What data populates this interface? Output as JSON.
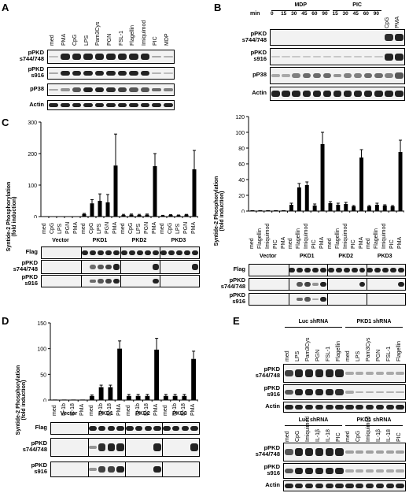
{
  "panels": {
    "A": {
      "letter": "A",
      "lanes": [
        "med",
        "PMA",
        "CpG",
        "LPS",
        "Pam3Cys",
        "PGN",
        "FSL-1",
        "Flagellin",
        "Imiquimod",
        "PIC",
        "MDP"
      ],
      "rows": [
        "pPKD s744/748",
        "pPKD s916",
        "pP38",
        "Actin"
      ]
    },
    "B": {
      "letter": "B",
      "min_label": "min",
      "groups": [
        "MDP",
        "PIC"
      ],
      "times": [
        "0",
        "15",
        "30",
        "45",
        "60",
        "90",
        "15",
        "30",
        "45",
        "60",
        "90"
      ],
      "extra_lanes": [
        "CpG",
        "PMA"
      ],
      "rows": [
        "pPKD s744/748",
        "pPKD s916",
        "pP38",
        "Actin"
      ]
    },
    "C": {
      "letter": "C",
      "left": {
        "ylabel": "Syntide-2 Phosphorylation (fold induction)",
        "lanes": [
          "med",
          "CpG",
          "LPS",
          "PGN",
          "PMA",
          "med",
          "CpG",
          "LPS",
          "PGN",
          "PMA",
          "med",
          "CpG",
          "LPS",
          "PGN",
          "PMA",
          "med",
          "CpG",
          "LPS",
          "PGN",
          "PMA"
        ],
        "groups": [
          "Vector",
          "PKD1",
          "PKD2",
          "PKD3"
        ],
        "rows": [
          "Flag",
          "pPKD s744/748",
          "pPKD s916"
        ]
      },
      "right": {
        "ylabel": "Syntide-2 Phosphorylation (fold induction)",
        "lanes": [
          "med",
          "Flagellin",
          "Imiquimod",
          "PIC",
          "PMA",
          "med",
          "Flagellin",
          "Imiquimod",
          "PIC",
          "PMA",
          "med",
          "Flagellin",
          "Imiquimod",
          "PIC",
          "PMA",
          "med",
          "Flagellin",
          "Imiquimod",
          "PIC",
          "PMA"
        ],
        "groups": [
          "Vector",
          "PKD1",
          "PKD2",
          "PKD3"
        ],
        "rows": [
          "Flag",
          "pPKD s744/748",
          "pPKD s916"
        ]
      }
    },
    "D": {
      "letter": "D",
      "ylabel": "Syntide-2 Phosphorylation (fold induction)",
      "lanes": [
        "med",
        "IL-1b",
        "IL-18",
        "PMA",
        "med",
        "IL-1b",
        "IL-18",
        "PMA",
        "med",
        "IL-1b",
        "IL-18",
        "PMA",
        "med",
        "IL-1b",
        "IL-18",
        "PMA"
      ],
      "groups": [
        "Vector",
        "PKD1",
        "PKD2",
        "PKD3"
      ],
      "rows": [
        "Flag",
        "pPKD s744/748",
        "pPKD s916"
      ]
    },
    "E": {
      "letter": "E",
      "top": {
        "groups": [
          "Luc shRNA",
          "PKD1 shRNA"
        ],
        "lanes": [
          "med",
          "LPS",
          "Pam3Cys",
          "PGN",
          "FSL-1",
          "Flagellin",
          "med",
          "LPS",
          "Pam3Cys",
          "PGN",
          "FSL-1",
          "Flagellin"
        ],
        "rows": [
          "pPKD s744/748",
          "pPKD s916",
          "Actin"
        ]
      },
      "bottom": {
        "groups": [
          "Luc shRNA",
          "PKD1 shRNA"
        ],
        "lanes": [
          "med",
          "CpG",
          "Imiquimod",
          "IL-1β",
          "IL-18",
          "PIC",
          "med",
          "CpG",
          "Imiquimod",
          "IL-1β",
          "IL-18",
          "PIC"
        ],
        "rows": [
          "pPKD s744/748",
          "pPKD s916",
          "Actin"
        ]
      }
    }
  },
  "chart_data": [
    {
      "type": "bar",
      "panel": "C-left",
      "ylabel": "Syntide-2 Phosphorylation (fold induction)",
      "yticks": [
        0,
        100,
        200,
        300
      ],
      "ylim": [
        0,
        300
      ],
      "categories": [
        "med",
        "CpG",
        "LPS",
        "PGN",
        "PMA",
        "med",
        "CpG",
        "LPS",
        "PGN",
        "PMA",
        "med",
        "CpG",
        "LPS",
        "PGN",
        "PMA",
        "med",
        "CpG",
        "LPS",
        "PGN",
        "PMA"
      ],
      "values": [
        1,
        1,
        1,
        1,
        1,
        8,
        42,
        50,
        45,
        162,
        5,
        6,
        5,
        6,
        160,
        3,
        5,
        4,
        6,
        150
      ],
      "errors": [
        0,
        0,
        0,
        0,
        0,
        2,
        12,
        22,
        25,
        100,
        2,
        2,
        2,
        2,
        40,
        1,
        1,
        1,
        1,
        60
      ]
    },
    {
      "type": "bar",
      "panel": "C-right",
      "ylabel": "Syntide-2 Phosphorylation (fold induction)",
      "yticks": [
        0,
        20,
        40,
        60,
        80,
        100,
        120
      ],
      "ylim": [
        0,
        120
      ],
      "categories": [
        "med",
        "Flagellin",
        "Imiquimod",
        "PIC",
        "PMA",
        "med",
        "Flagellin",
        "Imiquimod",
        "PIC",
        "PMA",
        "med",
        "Flagellin",
        "Imiquimod",
        "PIC",
        "PMA",
        "med",
        "Flagellin",
        "Imiquimod",
        "PIC",
        "PMA"
      ],
      "values": [
        1,
        1,
        1,
        1,
        1,
        8,
        30,
        33,
        7,
        85,
        10,
        8,
        9,
        6,
        68,
        6,
        8,
        7,
        6,
        75
      ],
      "errors": [
        0,
        0,
        0,
        0,
        0,
        2,
        5,
        4,
        2,
        15,
        2,
        2,
        2,
        1,
        10,
        1,
        2,
        1,
        1,
        15
      ]
    },
    {
      "type": "bar",
      "panel": "D",
      "ylabel": "Syntide-2 Phosphorylation (fold induction)",
      "yticks": [
        0,
        50,
        100,
        150
      ],
      "ylim": [
        0,
        150
      ],
      "categories": [
        "med",
        "IL-1b",
        "IL-18",
        "PMA",
        "med",
        "IL-1b",
        "IL-18",
        "PMA",
        "med",
        "IL-1b",
        "IL-18",
        "PMA",
        "med",
        "IL-1b",
        "IL-18",
        "PMA"
      ],
      "values": [
        1,
        1,
        1,
        1,
        8,
        25,
        25,
        100,
        8,
        8,
        8,
        98,
        8,
        8,
        8,
        80
      ],
      "errors": [
        0,
        0,
        0,
        0,
        2,
        4,
        4,
        15,
        3,
        3,
        3,
        22,
        3,
        3,
        3,
        15
      ]
    }
  ]
}
